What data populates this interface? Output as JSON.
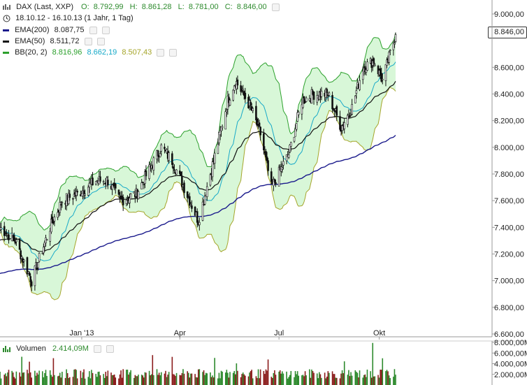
{
  "header": {
    "title": "DAX (Last, XXP)",
    "ohlc": {
      "o_label": "O:",
      "o": "8.792,99",
      "h_label": "H:",
      "h": "8.861,28",
      "l_label": "L:",
      "l": "8.781,00",
      "c_label": "C:",
      "c": "8.846,00"
    },
    "range_text": "18.10.12 - 16.10.13 (1 Jahr, 1 Tag)"
  },
  "indicators": [
    {
      "name": "EMA(200)",
      "value": "8.087,75",
      "color": "#1a1a8c"
    },
    {
      "name": "EMA(50)",
      "value": "8.511,72",
      "color": "#111111"
    },
    {
      "name": "BB(20, 2)",
      "values": [
        "8.816,96",
        "8.662,19",
        "8.507,43"
      ],
      "colors": [
        "#2ca02c",
        "#17a9c8",
        "#a5a52a"
      ]
    }
  ],
  "volume_label": "Volumen",
  "volume_value": "2.414,09M",
  "current_price_tag": "8.846,00",
  "colors": {
    "up": "#2d8a2d",
    "down": "#8b1c1c",
    "band_fill": "#d8f7d8",
    "upper": "#2ca02c",
    "lower": "#a5a52a",
    "mid": "#17a9c8",
    "ema50": "#111111",
    "ema200": "#1a1a8c"
  },
  "chart_data": {
    "type": "candlestick",
    "price_axis": {
      "ylim": [
        6600,
        9000
      ],
      "ticks": [
        "9.000,00",
        "8.600,00",
        "8.400,00",
        "8.200,00",
        "8.000,00",
        "7.800,00",
        "7.600,00",
        "7.400,00",
        "7.200,00",
        "7.000,00",
        "6.800,00",
        "6.600,00"
      ],
      "tick_values": [
        9000,
        8600,
        8400,
        8200,
        8000,
        7800,
        7600,
        7400,
        7200,
        7000,
        6800,
        6600
      ]
    },
    "x_ticks": [
      "Jan '13",
      "Apr",
      "Jul",
      "Okt"
    ],
    "x_tick_dates": [
      "2013-01-01",
      "2013-04-01",
      "2013-07-01",
      "2013-10-01"
    ],
    "date_range": [
      "2012-10-18",
      "2013-10-16"
    ],
    "close_anchors": [
      [
        "2012-10-18",
        7400
      ],
      [
        "2012-11-01",
        7300
      ],
      [
        "2012-11-16",
        7000
      ],
      [
        "2012-12-03",
        7400
      ],
      [
        "2012-12-14",
        7600
      ],
      [
        "2012-12-28",
        7650
      ],
      [
        "2013-01-14",
        7750
      ],
      [
        "2013-01-25",
        7750
      ],
      [
        "2013-02-05",
        7600
      ],
      [
        "2013-02-20",
        7650
      ],
      [
        "2013-03-05",
        7850
      ],
      [
        "2013-03-15",
        8000
      ],
      [
        "2013-03-25",
        7900
      ],
      [
        "2013-04-05",
        7700
      ],
      [
        "2013-04-18",
        7450
      ],
      [
        "2013-05-02",
        7900
      ],
      [
        "2013-05-15",
        8350
      ],
      [
        "2013-05-22",
        8500
      ],
      [
        "2013-06-05",
        8300
      ],
      [
        "2013-06-14",
        8100
      ],
      [
        "2013-06-24",
        7700
      ],
      [
        "2013-07-10",
        7950
      ],
      [
        "2013-07-22",
        8350
      ],
      [
        "2013-08-02",
        8400
      ],
      [
        "2013-08-15",
        8400
      ],
      [
        "2013-08-27",
        8150
      ],
      [
        "2013-09-06",
        8300
      ],
      [
        "2013-09-16",
        8600
      ],
      [
        "2013-09-26",
        8650
      ],
      [
        "2013-10-04",
        8500
      ],
      [
        "2013-10-16",
        8846
      ]
    ],
    "last_ohlc": {
      "open": 8792.99,
      "high": 8861.28,
      "low": 8781.0,
      "close": 8846.0
    },
    "volume_axis": {
      "ticks": [
        "8.000,00M",
        "6.000,00M",
        "4.000,00M",
        "2.000,00M"
      ],
      "tick_values": [
        8000,
        6000,
        4000,
        2000
      ],
      "ylim": [
        0,
        8000
      ]
    }
  }
}
